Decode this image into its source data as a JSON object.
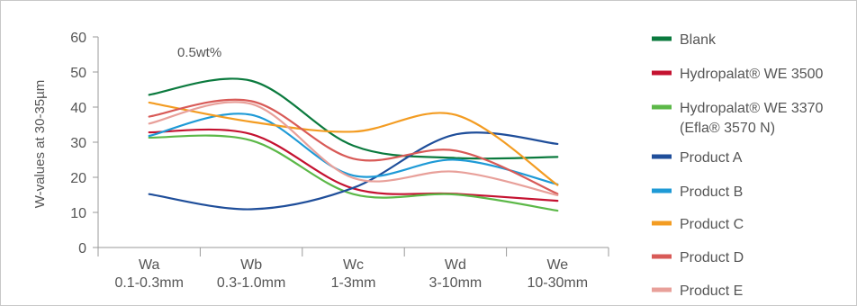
{
  "chart_data": {
    "type": "line",
    "ylabel": "W-values at 30-35µm",
    "annotation": "0.5wt%",
    "ylim": [
      0,
      60
    ],
    "yticks": [
      "0",
      "10",
      "20",
      "30",
      "40",
      "50",
      "60"
    ],
    "categories": [
      {
        "line1": "Wa",
        "line2": "0.1-0.3mm"
      },
      {
        "line1": "Wb",
        "line2": "0.3-1.0mm"
      },
      {
        "line1": "Wc",
        "line2": "1-3mm"
      },
      {
        "line1": "Wd",
        "line2": "3-10mm"
      },
      {
        "line1": "We",
        "line2": "10-30mm"
      }
    ],
    "grid": false,
    "legend_position": "right",
    "series": [
      {
        "name": "Blank",
        "color": "#0b7a3e",
        "values": [
          43.5,
          47.5,
          29,
          25.5,
          25.8
        ]
      },
      {
        "name": "Hydropalat® WE 3500",
        "color": "#c41230",
        "values": [
          32.8,
          32.3,
          16.8,
          15.3,
          13.3
        ]
      },
      {
        "name": "Hydropalat® WE 3370",
        "name2": "(Efla® 3570 N)",
        "color": "#5cb848",
        "values": [
          31.3,
          30.5,
          15.2,
          15.1,
          10.5
        ]
      },
      {
        "name": "Product A",
        "color": "#1f4e9a",
        "values": [
          15.2,
          10.9,
          17,
          32.2,
          29.5
        ]
      },
      {
        "name": "Product B",
        "color": "#1e9ad6",
        "values": [
          31.8,
          37.8,
          20.5,
          25,
          18
        ]
      },
      {
        "name": "Product C",
        "color": "#f39c22",
        "values": [
          41.3,
          35.8,
          33,
          37.8,
          17.8
        ]
      },
      {
        "name": "Product D",
        "color": "#d85a57",
        "values": [
          37.3,
          41.7,
          25.3,
          27.6,
          15.3
        ]
      },
      {
        "name": "Product E",
        "color": "#e8a09a",
        "values": [
          35.3,
          40.9,
          19.8,
          21.6,
          14.9
        ]
      }
    ]
  }
}
